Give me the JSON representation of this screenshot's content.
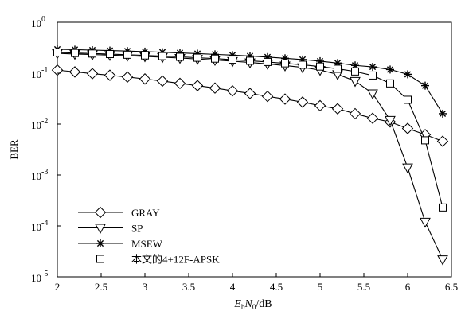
{
  "chart_data": {
    "type": "line",
    "xlabel": "E_b/N_0/dB",
    "xlabel_parts": {
      "main": "E",
      "sub1": "b",
      "mid": "N",
      "sub2": "0",
      "unit": "/dB"
    },
    "ylabel": "BER",
    "xlim": [
      2,
      6.5
    ],
    "ylim": [
      1e-05,
      1
    ],
    "yscale": "log",
    "grid": false,
    "legend_position": "bottom-left",
    "x_ticks": [
      "2",
      "2.5",
      "3",
      "3.5",
      "4",
      "4.5",
      "5",
      "5.5",
      "6",
      "6.5"
    ],
    "y_ticks": [
      {
        "base": "10",
        "exp": "0",
        "value": 1
      },
      {
        "base": "10",
        "exp": "-1",
        "value": 0.1
      },
      {
        "base": "10",
        "exp": "-2",
        "value": 0.01
      },
      {
        "base": "10",
        "exp": "-3",
        "value": 0.001
      },
      {
        "base": "10",
        "exp": "-4",
        "value": 0.0001
      },
      {
        "base": "10",
        "exp": "-5",
        "value": 1e-05
      }
    ],
    "series": [
      {
        "name": "GRAY",
        "marker": "diamond",
        "x": [
          2,
          2.2,
          2.4,
          2.6,
          2.8,
          3,
          3.2,
          3.4,
          3.6,
          3.8,
          4,
          4.2,
          4.4,
          4.6,
          4.8,
          5,
          5.2,
          5.4,
          5.6,
          5.8,
          6,
          6.2,
          6.4
        ],
        "values": [
          0.115,
          0.106,
          0.098,
          0.091,
          0.084,
          0.077,
          0.07,
          0.063,
          0.057,
          0.051,
          0.045,
          0.04,
          0.035,
          0.031,
          0.027,
          0.023,
          0.02,
          0.016,
          0.013,
          0.011,
          0.0082,
          0.0062,
          0.0046
        ]
      },
      {
        "name": "SP",
        "marker": "triangle-down",
        "x": [
          2,
          2.2,
          2.4,
          2.6,
          2.8,
          3,
          3.2,
          3.4,
          3.6,
          3.8,
          4,
          4.2,
          4.4,
          4.6,
          4.8,
          5,
          5.2,
          5.4,
          5.6,
          5.8,
          6,
          6.2,
          6.4
        ],
        "values": [
          0.245,
          0.238,
          0.232,
          0.226,
          0.22,
          0.213,
          0.206,
          0.198,
          0.19,
          0.181,
          0.172,
          0.162,
          0.152,
          0.141,
          0.13,
          0.115,
          0.095,
          0.07,
          0.04,
          0.012,
          0.0014,
          0.00012,
          2.2e-05
        ]
      },
      {
        "name": "MSEW",
        "marker": "asterisk",
        "x": [
          2,
          2.2,
          2.4,
          2.6,
          2.8,
          3,
          3.2,
          3.4,
          3.6,
          3.8,
          4,
          4.2,
          4.4,
          4.6,
          4.8,
          5,
          5.2,
          5.4,
          5.6,
          5.8,
          6,
          6.2,
          6.4
        ],
        "values": [
          0.295,
          0.29,
          0.284,
          0.278,
          0.272,
          0.265,
          0.258,
          0.25,
          0.242,
          0.234,
          0.226,
          0.217,
          0.207,
          0.196,
          0.185,
          0.172,
          0.158,
          0.142,
          0.133,
          0.118,
          0.095,
          0.057,
          0.016
        ]
      },
      {
        "name": "本文的4+12F-APSK",
        "marker": "square",
        "x": [
          2,
          2.2,
          2.4,
          2.6,
          2.8,
          3,
          3.2,
          3.4,
          3.6,
          3.8,
          4,
          4.2,
          4.4,
          4.6,
          4.8,
          5,
          5.2,
          5.4,
          5.6,
          5.8,
          6,
          6.2,
          6.4
        ],
        "values": [
          0.255,
          0.249,
          0.243,
          0.237,
          0.23,
          0.223,
          0.216,
          0.209,
          0.201,
          0.193,
          0.184,
          0.175,
          0.166,
          0.156,
          0.146,
          0.135,
          0.122,
          0.108,
          0.09,
          0.063,
          0.03,
          0.0048,
          0.00023
        ]
      }
    ]
  }
}
